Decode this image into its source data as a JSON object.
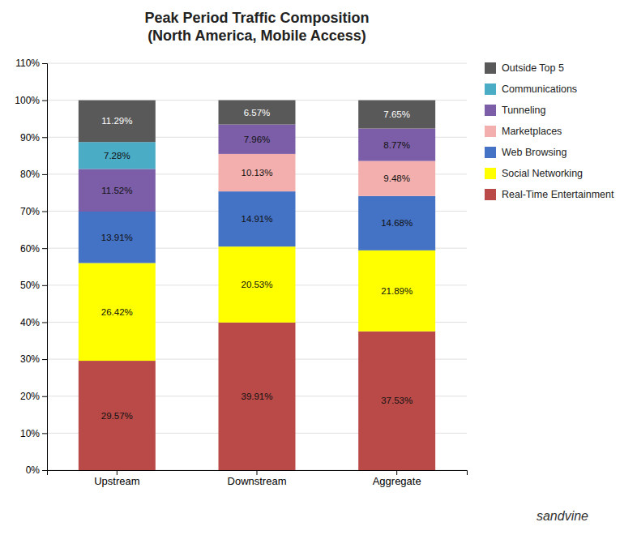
{
  "chart_data": {
    "type": "bar",
    "stacked": true,
    "title": "Peak Period Traffic Composition\n(North America, Mobile Access)",
    "categories": [
      "Upstream",
      "Downstream",
      "Aggregate"
    ],
    "series": [
      {
        "name": "Real-Time Entertainment",
        "color": "#B94A48",
        "values": [
          29.57,
          39.91,
          37.53
        ],
        "value_labels": [
          "29.57%",
          "39.91%",
          "37.53%"
        ]
      },
      {
        "name": "Social Networking",
        "color": "#FFFF00",
        "values": [
          26.42,
          20.53,
          21.89
        ],
        "value_labels": [
          "26.42%",
          "20.53%",
          "21.89%"
        ]
      },
      {
        "name": "Web Browsing",
        "color": "#4472C4",
        "values": [
          13.91,
          14.91,
          14.68
        ],
        "value_labels": [
          "13.91%",
          "14.91%",
          "14.68%"
        ]
      },
      {
        "name": "Marketplaces",
        "color": "#F2AFAD",
        "values": [
          0.0,
          10.13,
          9.48
        ],
        "value_labels": [
          null,
          "10.13%",
          "9.48%"
        ]
      },
      {
        "name": "Tunneling",
        "color": "#7B5EA7",
        "values": [
          11.52,
          7.96,
          8.77
        ],
        "value_labels": [
          "11.52%",
          "7.96%",
          "8.77%"
        ]
      },
      {
        "name": "Communications",
        "color": "#4BACC6",
        "values": [
          7.28,
          0.0,
          0.0
        ],
        "value_labels": [
          "7.28%",
          null,
          null
        ]
      },
      {
        "name": "Outside Top 5",
        "color": "#595959",
        "values": [
          11.29,
          6.57,
          7.65
        ],
        "value_labels": [
          "11.29%",
          "6.57%",
          "7.65%"
        ]
      }
    ],
    "data_labels": true,
    "ylim": [
      0,
      110
    ],
    "yticks": [
      {
        "value": 0,
        "label": "0%"
      },
      {
        "value": 10,
        "label": "10%"
      },
      {
        "value": 20,
        "label": "20%"
      },
      {
        "value": 30,
        "label": "30%"
      },
      {
        "value": 40,
        "label": "40%"
      },
      {
        "value": 50,
        "label": "50%"
      },
      {
        "value": 60,
        "label": "60%"
      },
      {
        "value": 70,
        "label": "70%"
      },
      {
        "value": 80,
        "label": "80%"
      },
      {
        "value": 90,
        "label": "90%"
      },
      {
        "value": 100,
        "label": "100%"
      },
      {
        "value": 110,
        "label": "110%"
      }
    ],
    "grid": true,
    "legend": "right",
    "annotations": [
      "sandvine"
    ]
  }
}
